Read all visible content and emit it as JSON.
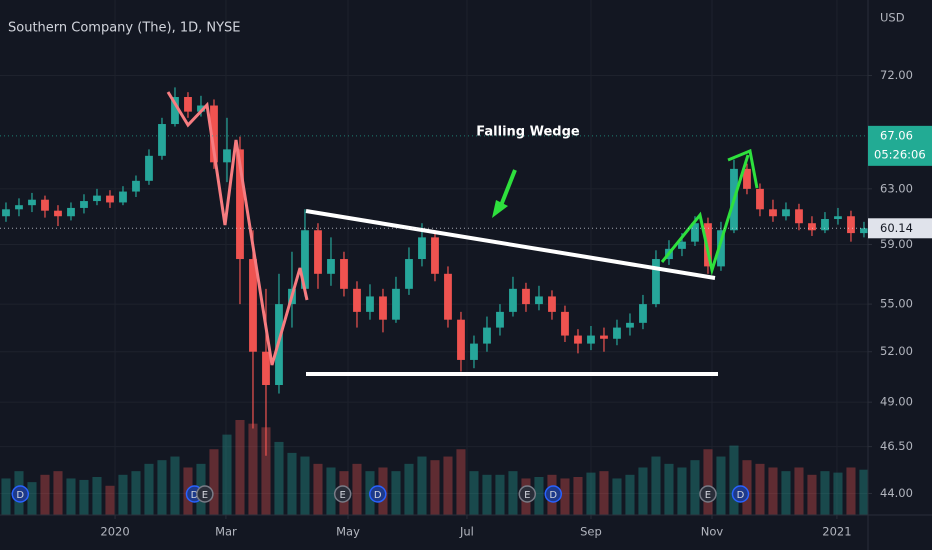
{
  "chart_data": {
    "type": "candlestick",
    "title": "Southern Company (The), 1D, NYSE",
    "currency": "USD",
    "log_scale": true,
    "up_color": "#26a69a",
    "down_color": "#ef5350",
    "annotations": [
      "Falling Wedge"
    ],
    "x": [
      0,
      1,
      2,
      3,
      4,
      5,
      6,
      7,
      8,
      9,
      10,
      11,
      12,
      13,
      14,
      15,
      16,
      17,
      18,
      19,
      20,
      21,
      22,
      23,
      24,
      25,
      26,
      27,
      28,
      29,
      30,
      31,
      32,
      33,
      34,
      35,
      36,
      37,
      38,
      39,
      40,
      41,
      42,
      43,
      44,
      45,
      46,
      47,
      48,
      49,
      50,
      51,
      52,
      53,
      54,
      55,
      56,
      57,
      58,
      59,
      60,
      61,
      62,
      63,
      64,
      65,
      66
    ],
    "ohlc": [
      [
        61.0,
        62.0,
        60.6,
        61.5
      ],
      [
        61.5,
        62.3,
        61.0,
        61.8
      ],
      [
        61.8,
        62.7,
        61.3,
        62.2
      ],
      [
        62.2,
        62.5,
        60.9,
        61.4
      ],
      [
        61.4,
        61.8,
        60.3,
        61.0
      ],
      [
        61.0,
        62.0,
        60.7,
        61.6
      ],
      [
        61.6,
        62.6,
        61.2,
        62.1
      ],
      [
        62.1,
        63.0,
        61.8,
        62.5
      ],
      [
        62.5,
        62.9,
        61.6,
        62.0
      ],
      [
        62.0,
        63.2,
        61.8,
        62.8
      ],
      [
        62.8,
        64.0,
        62.4,
        63.6
      ],
      [
        63.6,
        66.0,
        63.3,
        65.5
      ],
      [
        65.5,
        68.5,
        65.2,
        68.0
      ],
      [
        68.0,
        71.0,
        67.8,
        70.2
      ],
      [
        70.2,
        70.6,
        68.5,
        69.0
      ],
      [
        69.0,
        70.3,
        68.6,
        69.5
      ],
      [
        69.5,
        70.0,
        64.5,
        65.0
      ],
      [
        65.0,
        68.5,
        63.5,
        66.0
      ],
      [
        66.0,
        67.0,
        55.0,
        58.0
      ],
      [
        58.0,
        60.0,
        47.5,
        52.0
      ],
      [
        52.0,
        56.0,
        46.0,
        50.0
      ],
      [
        50.0,
        57.0,
        49.5,
        55.0
      ],
      [
        55.0,
        58.5,
        53.5,
        56.0
      ],
      [
        56.0,
        61.5,
        55.5,
        60.0
      ],
      [
        60.0,
        60.5,
        56.0,
        57.0
      ],
      [
        57.0,
        59.5,
        56.2,
        58.0
      ],
      [
        58.0,
        58.5,
        55.5,
        56.0
      ],
      [
        56.0,
        56.5,
        53.5,
        54.5
      ],
      [
        54.5,
        56.3,
        54.0,
        55.5
      ],
      [
        55.5,
        56.0,
        53.2,
        54.0
      ],
      [
        54.0,
        56.8,
        53.8,
        56.0
      ],
      [
        56.0,
        58.8,
        55.6,
        58.0
      ],
      [
        58.0,
        60.5,
        57.5,
        59.5
      ],
      [
        59.5,
        60.0,
        56.5,
        57.0
      ],
      [
        57.0,
        57.5,
        53.5,
        54.0
      ],
      [
        54.0,
        54.5,
        50.8,
        51.5
      ],
      [
        51.5,
        53.0,
        51.0,
        52.5
      ],
      [
        52.5,
        54.2,
        52.0,
        53.5
      ],
      [
        53.5,
        55.0,
        53.0,
        54.5
      ],
      [
        54.5,
        56.8,
        54.2,
        56.0
      ],
      [
        56.0,
        56.4,
        54.5,
        55.0
      ],
      [
        55.0,
        56.2,
        54.6,
        55.5
      ],
      [
        55.5,
        55.9,
        54.0,
        54.5
      ],
      [
        54.5,
        54.9,
        52.6,
        53.0
      ],
      [
        53.0,
        53.4,
        51.9,
        52.5
      ],
      [
        52.5,
        53.6,
        52.1,
        53.0
      ],
      [
        53.0,
        53.5,
        52.0,
        52.8
      ],
      [
        52.8,
        54.0,
        52.4,
        53.5
      ],
      [
        53.5,
        54.4,
        53.0,
        53.8
      ],
      [
        53.8,
        55.6,
        53.4,
        55.0
      ],
      [
        55.0,
        58.6,
        54.8,
        58.0
      ],
      [
        58.0,
        59.3,
        57.6,
        58.7
      ],
      [
        58.7,
        59.8,
        58.2,
        59.2
      ],
      [
        59.2,
        61.0,
        58.9,
        60.5
      ],
      [
        60.5,
        60.9,
        57.0,
        57.5
      ],
      [
        57.5,
        60.6,
        57.2,
        60.0
      ],
      [
        60.0,
        65.2,
        59.8,
        64.5
      ],
      [
        64.5,
        64.9,
        62.6,
        63.0
      ],
      [
        63.0,
        63.4,
        61.0,
        61.5
      ],
      [
        61.5,
        62.2,
        60.6,
        61.0
      ],
      [
        61.0,
        62.0,
        60.7,
        61.5
      ],
      [
        61.5,
        61.9,
        60.0,
        60.5
      ],
      [
        60.5,
        61.0,
        59.6,
        60.0
      ],
      [
        60.0,
        61.3,
        59.8,
        60.8
      ],
      [
        60.8,
        61.6,
        60.4,
        61.0
      ],
      [
        61.0,
        61.4,
        59.2,
        59.8
      ],
      [
        59.8,
        60.6,
        59.5,
        60.14
      ]
    ],
    "volume": [
      5,
      6,
      4.5,
      5.5,
      6,
      5,
      4.8,
      5.2,
      4,
      5.5,
      6,
      7,
      7.5,
      8,
      6.5,
      7,
      9,
      11,
      13,
      12.5,
      12,
      10,
      8.5,
      8,
      7,
      6.5,
      6,
      7,
      6,
      6.5,
      6,
      7,
      8,
      7.5,
      8,
      9,
      6,
      5.5,
      5.5,
      6,
      5,
      5.2,
      5.5,
      5,
      5.2,
      5.8,
      6,
      5,
      5.5,
      6.5,
      8,
      7,
      6.5,
      7.5,
      9,
      8,
      9.5,
      7.5,
      7,
      6.5,
      6,
      6.5,
      5.5,
      6,
      5.8,
      6.5,
      6.2
    ],
    "xlim": [
      -0.46,
      66.31
    ],
    "xticks": [
      {
        "value": 8.39,
        "label": "2020"
      },
      {
        "value": 16.92,
        "label": "Mar"
      },
      {
        "value": 26.31,
        "label": "May"
      },
      {
        "value": 35.46,
        "label": "Jul"
      },
      {
        "value": 45.0,
        "label": "Sep"
      },
      {
        "value": 54.31,
        "label": "Nov"
      },
      {
        "value": 63.92,
        "label": "2021"
      }
    ],
    "ylim": [
      42.9,
      78.7
    ],
    "yticks": [
      {
        "value": 44,
        "label": "44.00"
      },
      {
        "value": 46.5,
        "label": "46.50"
      },
      {
        "value": 49,
        "label": "49.00"
      },
      {
        "value": 52,
        "label": "52.00"
      },
      {
        "value": 55,
        "label": "55.00"
      },
      {
        "value": 59,
        "label": "59.00"
      },
      {
        "value": 63,
        "label": "63.00"
      },
      {
        "value": 72,
        "label": "72.00"
      }
    ],
    "price_markers": [
      {
        "value": 67.06,
        "label": "67.06",
        "time": "05:26:06",
        "color": "#22ab94"
      },
      {
        "value": 60.14,
        "label": "60.14",
        "color": "#e0e3eb"
      }
    ],
    "events": [
      {
        "x": 1.1,
        "label": "D"
      },
      {
        "x": 14.5,
        "label": "D"
      },
      {
        "x": 15.3,
        "label": "E"
      },
      {
        "x": 25.9,
        "label": "E"
      },
      {
        "x": 28.6,
        "label": "D"
      },
      {
        "x": 40.1,
        "label": "E"
      },
      {
        "x": 42.1,
        "label": "D"
      },
      {
        "x": 54.0,
        "label": "E"
      },
      {
        "x": 56.5,
        "label": "D"
      }
    ]
  }
}
